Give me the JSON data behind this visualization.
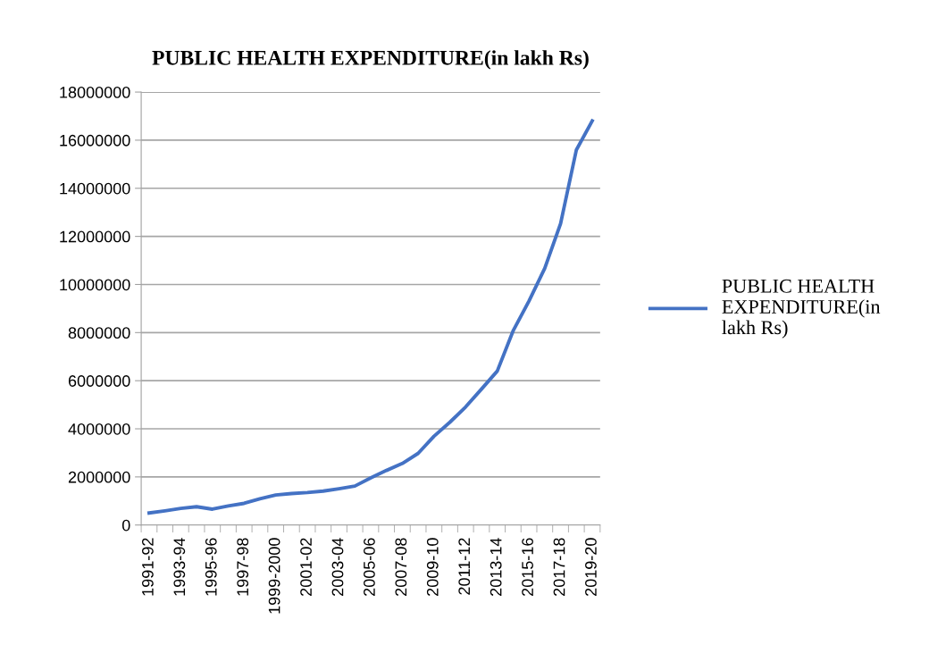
{
  "chart_data": {
    "type": "line",
    "title": "PUBLIC HEALTH EXPENDITURE(in lakh Rs)",
    "categories": [
      "1991-92",
      null,
      "1993-94",
      null,
      "1995-96",
      null,
      "1997-98",
      null,
      "1999-2000",
      null,
      "2001-02",
      null,
      "2003-04",
      null,
      "2005-06",
      null,
      "2007-08",
      null,
      "2009-10",
      null,
      "2011-12",
      null,
      "2013-14",
      null,
      "2015-16",
      null,
      "2017-18",
      null,
      "2019-20"
    ],
    "series": [
      {
        "name": "PUBLIC HEALTH\nEXPENDITURE(in\nlakh Rs)",
        "color": "#4472c4",
        "values": [
          500000,
          590000,
          690000,
          760000,
          660000,
          790000,
          900000,
          1090000,
          1250000,
          1310000,
          1350000,
          1410000,
          1510000,
          1620000,
          1960000,
          2270000,
          2560000,
          2980000,
          3690000,
          4270000,
          4910000,
          5650000,
          6400000,
          8070000,
          9310000,
          10670000,
          12530000,
          15600000,
          16800000
        ]
      }
    ],
    "ylim": [
      0,
      18000000
    ],
    "yticks": [
      0,
      2000000,
      4000000,
      6000000,
      8000000,
      10000000,
      12000000,
      14000000,
      16000000,
      18000000
    ],
    "grid": "y",
    "legend": "right",
    "marker": "none",
    "line_style": "solid"
  }
}
